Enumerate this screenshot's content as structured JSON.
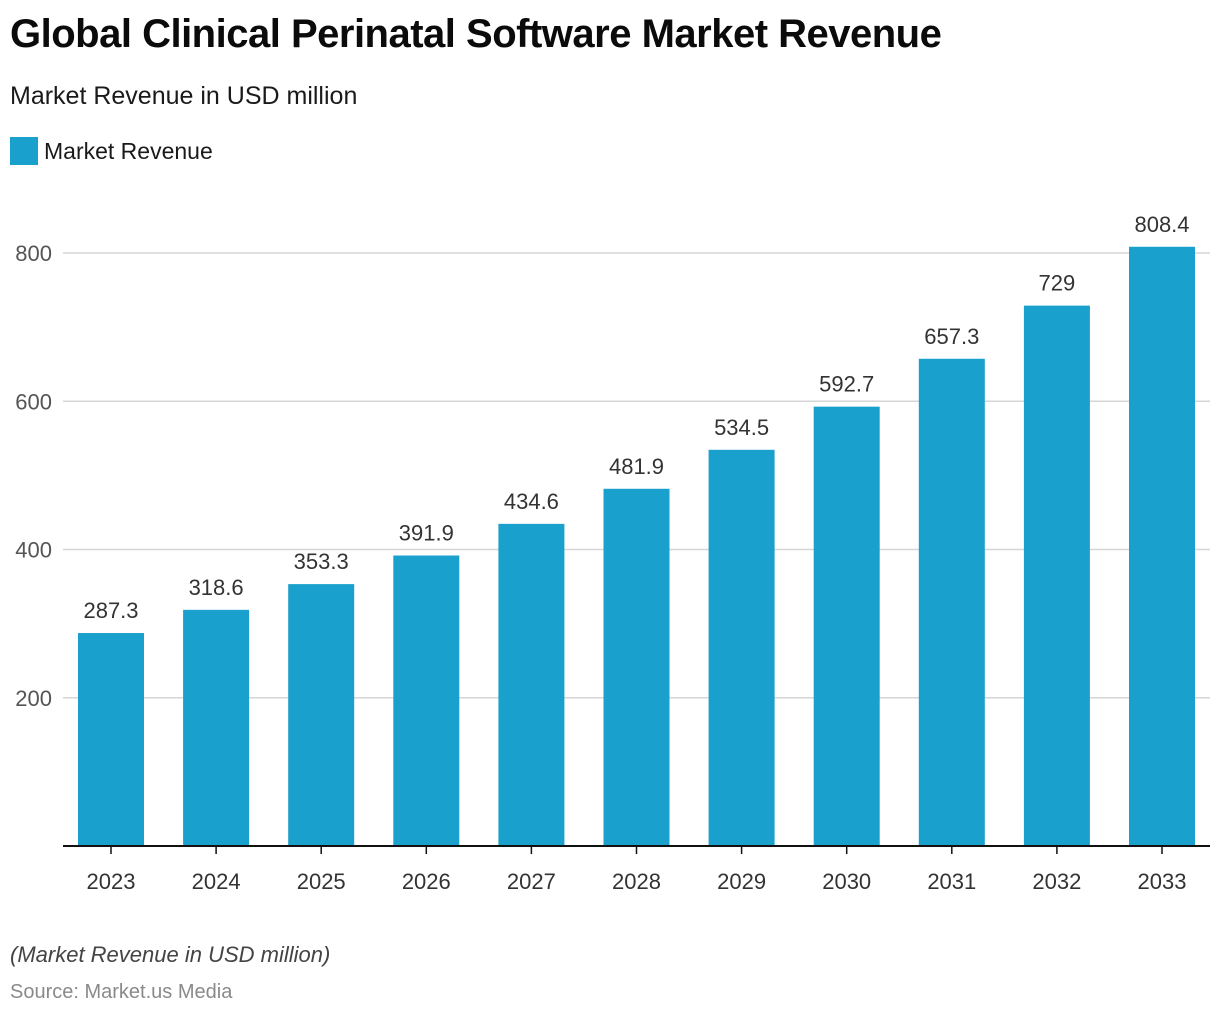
{
  "title": "Global Clinical Perinatal Software Market Revenue",
  "subtitle": "Market Revenue in USD million",
  "footnote": "(Market Revenue in USD million)",
  "source": "Source: Market.us Media",
  "colors": {
    "bar": "#1aa0cc",
    "grid": "#d6d6d6",
    "axis": "#111111",
    "tick_text": "#555555",
    "label_text": "#333333"
  },
  "chart_data": {
    "type": "bar",
    "categories": [
      "2023",
      "2024",
      "2025",
      "2026",
      "2027",
      "2028",
      "2029",
      "2030",
      "2031",
      "2032",
      "2033"
    ],
    "series": [
      {
        "name": "Market Revenue",
        "values": [
          287.3,
          318.6,
          353.3,
          391.9,
          434.6,
          481.9,
          534.5,
          592.7,
          657.3,
          729,
          808.4
        ]
      }
    ],
    "data_labels": [
      "287.3",
      "318.6",
      "353.3",
      "391.9",
      "434.6",
      "481.9",
      "534.5",
      "592.7",
      "657.3",
      "729",
      "808.4"
    ],
    "y_ticks": [
      200,
      400,
      600,
      800
    ],
    "ylim": [
      0,
      800
    ],
    "grid": true,
    "legend_position": "top-left",
    "xlabel": "",
    "ylabel": ""
  }
}
